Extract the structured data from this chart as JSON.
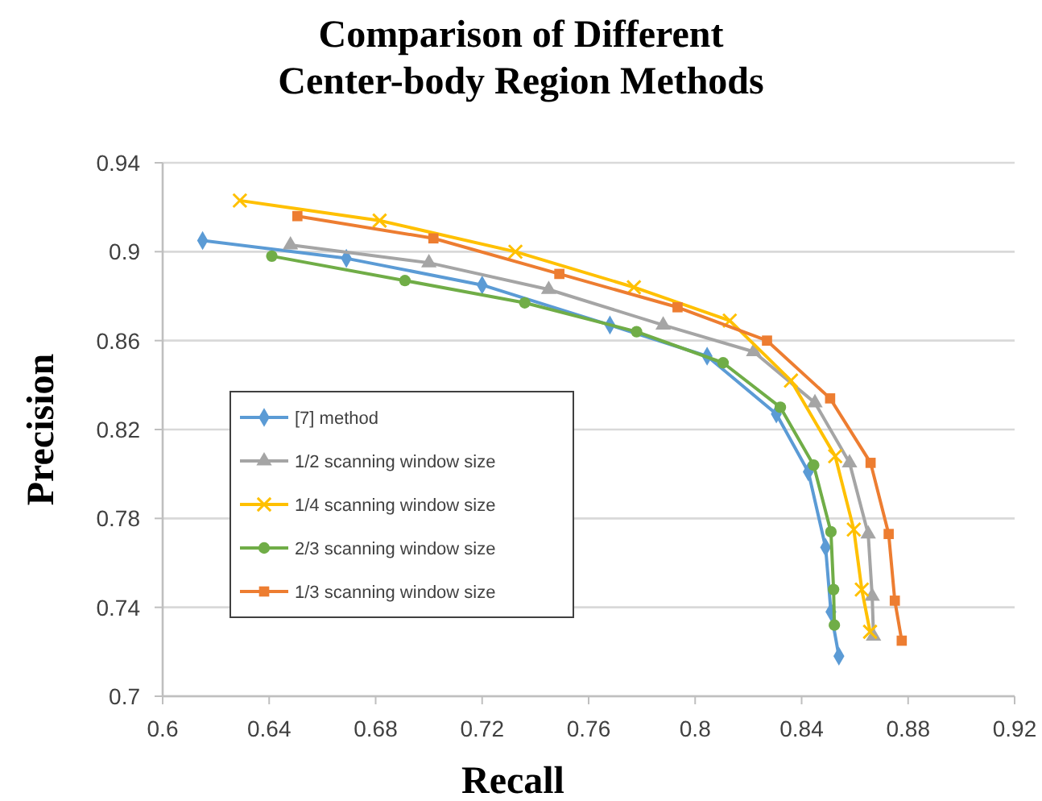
{
  "chart_data": {
    "type": "line",
    "title": "Comparison of Different\nCenter-body Region Methods",
    "xlabel": "Recall",
    "ylabel": "Precision",
    "xlim": [
      0.6,
      0.92
    ],
    "xticks": [
      0.6,
      0.64,
      0.68,
      0.72,
      0.76,
      0.8,
      0.84,
      0.88,
      0.92
    ],
    "ylim": [
      0.7,
      0.94
    ],
    "yticks": [
      0.7,
      0.74,
      0.78,
      0.82,
      0.86,
      0.9,
      0.94
    ],
    "grid": "y",
    "legend": "bottom left",
    "series": [
      {
        "name": "[7] method",
        "color": "#5b9bd5",
        "marker": "diamond",
        "x": [
          0.615,
          0.669,
          0.72,
          0.768,
          0.8045,
          0.8305,
          0.8425,
          0.849,
          0.851,
          0.854
        ],
        "values": [
          0.905,
          0.897,
          0.885,
          0.867,
          0.853,
          0.827,
          0.801,
          0.767,
          0.738,
          0.718
        ]
      },
      {
        "name": "1/2 scanning window size",
        "color": "#a5a5a5",
        "marker": "triangle",
        "x": [
          0.648,
          0.7,
          0.745,
          0.788,
          0.822,
          0.845,
          0.858,
          0.865,
          0.8665,
          0.867
        ],
        "values": [
          0.903,
          0.895,
          0.883,
          0.867,
          0.855,
          0.832,
          0.805,
          0.773,
          0.745,
          0.727
        ]
      },
      {
        "name": "1/4 scanning window size",
        "color": "#ffc000",
        "marker": "cross",
        "x": [
          0.629,
          0.6815,
          0.7325,
          0.777,
          0.813,
          0.836,
          0.8526,
          0.8596,
          0.8626,
          0.8657
        ],
        "values": [
          0.923,
          0.914,
          0.9,
          0.884,
          0.869,
          0.842,
          0.808,
          0.775,
          0.748,
          0.729
        ]
      },
      {
        "name": "2/3 scanning window size",
        "color": "#70ad47",
        "marker": "circle",
        "x": [
          0.641,
          0.691,
          0.736,
          0.778,
          0.8105,
          0.832,
          0.8445,
          0.851,
          0.852,
          0.8523
        ],
        "values": [
          0.898,
          0.887,
          0.877,
          0.864,
          0.85,
          0.83,
          0.804,
          0.774,
          0.748,
          0.732
        ]
      },
      {
        "name": "1/3 scanning window size",
        "color": "#ed7d31",
        "marker": "square",
        "x": [
          0.6506,
          0.7017,
          0.749,
          0.7934,
          0.827,
          0.8507,
          0.8659,
          0.8727,
          0.875,
          0.8776
        ],
        "values": [
          0.916,
          0.906,
          0.89,
          0.875,
          0.86,
          0.834,
          0.805,
          0.773,
          0.743,
          0.725
        ]
      }
    ]
  }
}
